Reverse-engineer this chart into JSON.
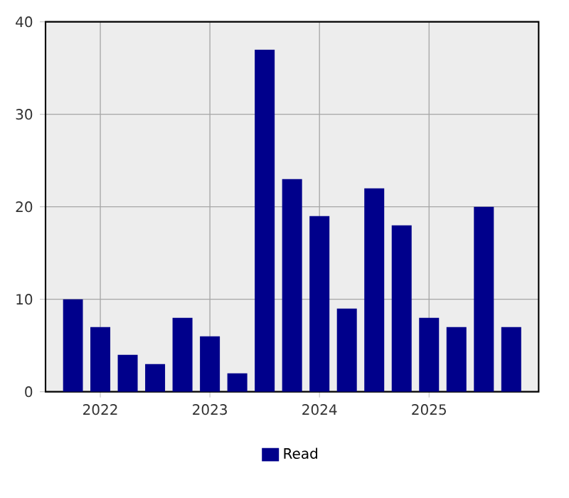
{
  "chart_data": {
    "type": "bar",
    "x": [
      "2021-10",
      "2022-01",
      "2022-04",
      "2022-07",
      "2022-10",
      "2023-01",
      "2023-04",
      "2023-07",
      "2023-10",
      "2024-01",
      "2024-04",
      "2024-07",
      "2024-10",
      "2025-01",
      "2025-04",
      "2025-07",
      "2025-10"
    ],
    "series": [
      {
        "name": "Read",
        "color": "#00008b",
        "values": [
          10,
          7,
          4,
          3,
          8,
          6,
          2,
          37,
          23,
          19,
          9,
          22,
          18,
          8,
          7,
          20,
          7
        ]
      }
    ],
    "xlim": [
      "2021-07",
      "2026-01"
    ],
    "xticks": [
      "2022",
      "2023",
      "2024",
      "2025"
    ],
    "ylim": [
      0,
      40
    ],
    "yticks": [
      0,
      10,
      20,
      30,
      40
    ],
    "grid": true,
    "legend": "bottom"
  }
}
